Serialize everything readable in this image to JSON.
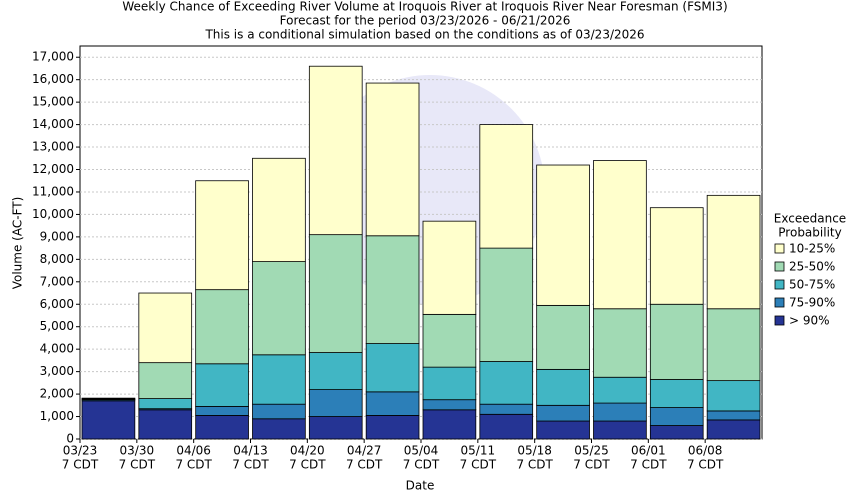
{
  "chart_data": {
    "type": "stacked_bar",
    "title": "Weekly Chance of Exceeding River Volume at Iroquois River at Iroquois River Near Foresman (FSMI3)",
    "subtitle": "Forecast for the period 03/23/2026 - 06/21/2026",
    "note": "This is a conditional simulation based on the conditions as of 03/23/2026",
    "x_label": "Date",
    "y_label": "Volume (AC-FT)",
    "legend_title": [
      "Exceedance",
      "Probability"
    ],
    "categories": [
      [
        "03/23",
        "7 CDT"
      ],
      [
        "03/30",
        "7 CDT"
      ],
      [
        "04/06",
        "7 CDT"
      ],
      [
        "04/13",
        "7 CDT"
      ],
      [
        "04/20",
        "7 CDT"
      ],
      [
        "04/27",
        "7 CDT"
      ],
      [
        "05/04",
        "7 CDT"
      ],
      [
        "05/11",
        "7 CDT"
      ],
      [
        "05/18",
        "7 CDT"
      ],
      [
        "05/25",
        "7 CDT"
      ],
      [
        "06/01",
        "7 CDT"
      ],
      [
        "06/08",
        "7 CDT"
      ]
    ],
    "series": [
      {
        "name": "> 90%",
        "color": "#253494",
        "values": [
          1700,
          1300,
          1050,
          900,
          1000,
          1050,
          1300,
          1100,
          800,
          800,
          600,
          850
        ]
      },
      {
        "name": "75-90%",
        "color": "#2c7fb8",
        "values": [
          50,
          50,
          400,
          650,
          1200,
          1050,
          450,
          450,
          700,
          800,
          800,
          400
        ]
      },
      {
        "name": "50-75%",
        "color": "#41b6c4",
        "values": [
          20,
          450,
          1900,
          2200,
          1650,
          2150,
          1450,
          1900,
          1600,
          1150,
          1250,
          1350
        ]
      },
      {
        "name": "25-50%",
        "color": "#a1dab4",
        "values": [
          20,
          1600,
          3300,
          4150,
          5250,
          4800,
          2350,
          5050,
          2850,
          3050,
          3350,
          3200
        ]
      },
      {
        "name": "10-25%",
        "color": "#ffffcc",
        "values": [
          30,
          3100,
          4850,
          4600,
          7500,
          6800,
          4150,
          5500,
          6250,
          6600,
          4300,
          5050
        ]
      }
    ],
    "ylim": [
      0,
      17500
    ],
    "yticks": [
      0,
      {
        "value": 1000,
        "label": "1,000"
      },
      {
        "value": 2000,
        "label": "2,000"
      },
      {
        "value": 3000,
        "label": "3,000"
      },
      {
        "value": 4000,
        "label": "4,000"
      },
      {
        "value": 5000,
        "label": "5,000"
      },
      {
        "value": 6000,
        "label": "6,000"
      },
      {
        "value": 7000,
        "label": "7,000"
      },
      {
        "value": 8000,
        "label": "8,000"
      },
      {
        "value": 9000,
        "label": "9,000"
      },
      {
        "value": 10000,
        "label": "10,000"
      },
      {
        "value": 11000,
        "label": "11,000"
      },
      {
        "value": 12000,
        "label": "12,000"
      },
      {
        "value": 13000,
        "label": "13,000"
      },
      {
        "value": 14000,
        "label": "14,000"
      },
      {
        "value": 15000,
        "label": "15,000"
      },
      {
        "value": 16000,
        "label": "16,000"
      },
      {
        "value": 17000,
        "label": "17,000"
      }
    ],
    "grid": true,
    "legend": "right"
  }
}
